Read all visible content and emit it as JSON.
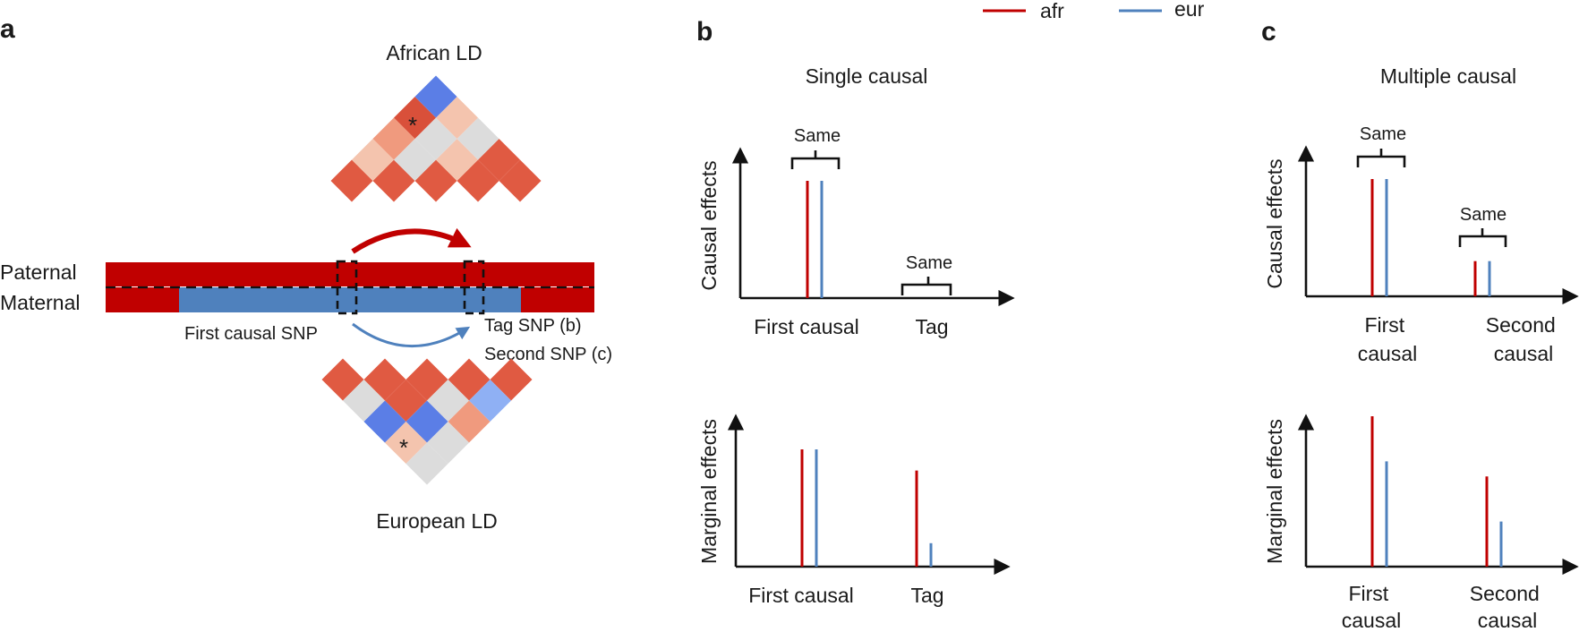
{
  "colors": {
    "afr": "#c00000",
    "eur": "#4f81bd",
    "ld_neutral": "#dcdcdc"
  },
  "legend": {
    "afr_label": "afr",
    "eur_label": "eur"
  },
  "panel_a": {
    "letter": "a",
    "african_ld_title": "African LD",
    "european_ld_title": "European LD",
    "paternal_label": "Paternal",
    "maternal_label": "Maternal",
    "first_causal_label": "First causal SNP",
    "tag_label": "Tag SNP (b)",
    "second_label": "Second SNP (c)",
    "asterisk": "*",
    "african_ld_cells": [
      {
        "r": 0,
        "c": 0,
        "color": "#e05a42"
      },
      {
        "r": 0,
        "c": 1,
        "color": "#e05a42"
      },
      {
        "r": 0,
        "c": 2,
        "color": "#e05a42"
      },
      {
        "r": 0,
        "c": 3,
        "color": "#e05a42"
      },
      {
        "r": 0,
        "c": 4,
        "color": "#e05a42"
      },
      {
        "r": 1,
        "c": 0,
        "color": "#f4c4ae"
      },
      {
        "r": 1,
        "c": 1,
        "color": "#dcdcdc"
      },
      {
        "r": 1,
        "c": 2,
        "color": "#f4c4ae"
      },
      {
        "r": 1,
        "c": 3,
        "color": "#e05a42"
      },
      {
        "r": 2,
        "c": 0,
        "color": "#f09a7e"
      },
      {
        "r": 2,
        "c": 1,
        "color": "#dcdcdc"
      },
      {
        "r": 2,
        "c": 2,
        "color": "#dcdcdc"
      },
      {
        "r": 3,
        "c": 0,
        "color": "#d9503a"
      },
      {
        "r": 3,
        "c": 1,
        "color": "#f4c4ae"
      },
      {
        "r": 4,
        "c": 0,
        "color": "#5b7ee6"
      }
    ],
    "european_ld_cells": [
      {
        "r": 0,
        "c": 0,
        "color": "#e05a42"
      },
      {
        "r": 0,
        "c": 1,
        "color": "#e05a42"
      },
      {
        "r": 0,
        "c": 2,
        "color": "#e05a42"
      },
      {
        "r": 0,
        "c": 3,
        "color": "#e05a42"
      },
      {
        "r": 0,
        "c": 4,
        "color": "#e05a42"
      },
      {
        "r": 1,
        "c": 0,
        "color": "#dcdcdc"
      },
      {
        "r": 1,
        "c": 1,
        "color": "#e05a42"
      },
      {
        "r": 1,
        "c": 2,
        "color": "#dcdcdc"
      },
      {
        "r": 1,
        "c": 3,
        "color": "#8fb0f4"
      },
      {
        "r": 2,
        "c": 0,
        "color": "#5b7ee6"
      },
      {
        "r": 2,
        "c": 1,
        "color": "#5b7ee6"
      },
      {
        "r": 2,
        "c": 2,
        "color": "#f09a7e"
      },
      {
        "r": 3,
        "c": 0,
        "color": "#f4c4ae"
      },
      {
        "r": 3,
        "c": 1,
        "color": "#dcdcdc"
      },
      {
        "r": 4,
        "c": 0,
        "color": "#dcdcdc"
      }
    ]
  },
  "panel_b": {
    "letter": "b",
    "title": "Single causal",
    "causal": {
      "ylabel": "Causal effects",
      "categories": [
        "First causal",
        "Tag"
      ],
      "values": {
        "afr": [
          1.0,
          0.0
        ],
        "eur": [
          1.0,
          0.0
        ]
      },
      "brace_labels": [
        "Same",
        "Same"
      ]
    },
    "marginal": {
      "ylabel": "Marginal effects",
      "categories": [
        "First causal",
        "Tag"
      ],
      "values": {
        "afr": [
          1.0,
          0.82
        ],
        "eur": [
          1.0,
          0.2
        ]
      }
    }
  },
  "panel_c": {
    "letter": "c",
    "title": "Multiple causal",
    "causal": {
      "ylabel": "Causal effects",
      "categories": [
        "First\ncausal",
        "Second\ncausal"
      ],
      "values": {
        "afr": [
          1.0,
          0.3
        ],
        "eur": [
          1.0,
          0.3
        ]
      },
      "brace_labels": [
        "Same",
        "Same"
      ]
    },
    "marginal": {
      "ylabel": "Marginal effects",
      "categories": [
        "First\ncausal",
        "Second\ncausal"
      ],
      "values": {
        "afr": [
          1.0,
          0.6
        ],
        "eur": [
          0.7,
          0.3
        ]
      }
    }
  }
}
